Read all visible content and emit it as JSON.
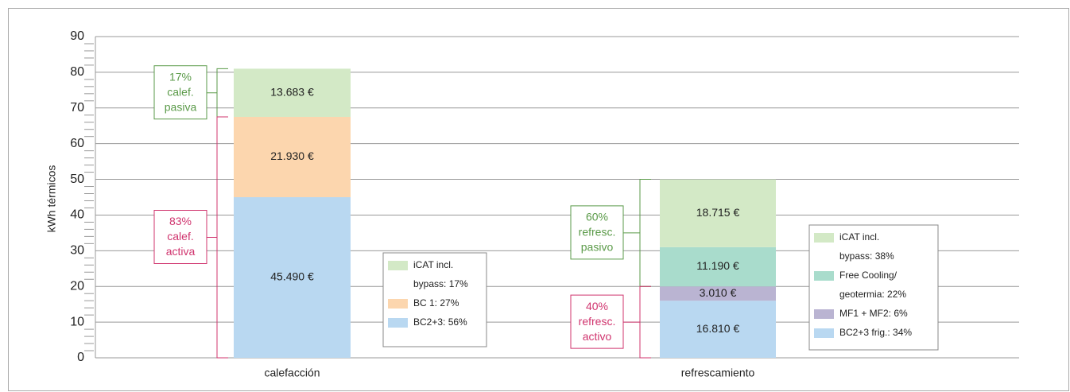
{
  "chart_data": {
    "type": "bar",
    "stacked": true,
    "ylabel": "kWh térmicos",
    "ylim": [
      0,
      90
    ],
    "yticks": [
      0,
      10,
      20,
      30,
      40,
      50,
      60,
      70,
      80,
      90
    ],
    "yminorticks": [
      2,
      4,
      6,
      8,
      12,
      14,
      16,
      18,
      22,
      24,
      26,
      28,
      32,
      34,
      36,
      38,
      42,
      44,
      46,
      48,
      52,
      54,
      56,
      58,
      62,
      64,
      66,
      68,
      72,
      74,
      76,
      78,
      82,
      84,
      86,
      88
    ],
    "grid": true,
    "categories": [
      "calefacción",
      "refrescamiento"
    ],
    "bars": [
      {
        "segments": [
          {
            "value": 45,
            "label": "45.490 €",
            "color": "#b9d8f1"
          },
          {
            "value": 22.5,
            "label": "21.930 €",
            "color": "#fcd6ae"
          },
          {
            "value": 13.5,
            "label": "13.683 €",
            "color": "#d3e9c6"
          }
        ],
        "legend": [
          {
            "segment": 2,
            "lines": [
              "iCAT incl.",
              "bypass: 17%"
            ]
          },
          {
            "segment": 1,
            "lines": [
              "BC 1: 27%"
            ]
          },
          {
            "segment": 0,
            "lines": [
              "BC2+3: 56%"
            ]
          }
        ],
        "brackets": [
          {
            "segments": [
              2
            ],
            "color": "#5a9a48",
            "lines": [
              "17%",
              "calef.",
              "pasiva"
            ]
          },
          {
            "segments": [
              0,
              1
            ],
            "color": "#d0346e",
            "lines": [
              "83%",
              "calef.",
              "activa"
            ]
          }
        ]
      },
      {
        "segments": [
          {
            "value": 16,
            "label": "16.810 €",
            "color": "#b9d8f1"
          },
          {
            "value": 4,
            "label": "3.010 €",
            "color": "#bab4d2"
          },
          {
            "value": 11,
            "label": "11.190 €",
            "color": "#a9dccc"
          },
          {
            "value": 19,
            "label": "18.715 €",
            "color": "#d3e9c6"
          }
        ],
        "legend": [
          {
            "segment": 3,
            "lines": [
              "iCAT incl.",
              "bypass: 38%"
            ]
          },
          {
            "segment": 2,
            "lines": [
              "Free Cooling/",
              "geotermia: 22%"
            ]
          },
          {
            "segment": 1,
            "lines": [
              "MF1 + MF2: 6%"
            ]
          },
          {
            "segment": 0,
            "lines": [
              "BC2+3 frig.: 34%"
            ]
          }
        ],
        "brackets": [
          {
            "segments": [
              2,
              3
            ],
            "color": "#5a9a48",
            "lines": [
              "60%",
              "refresc.",
              "pasivo"
            ]
          },
          {
            "segments": [
              0,
              1
            ],
            "color": "#d0346e",
            "lines": [
              "40%",
              "refresc.",
              "activo"
            ]
          }
        ]
      }
    ]
  }
}
